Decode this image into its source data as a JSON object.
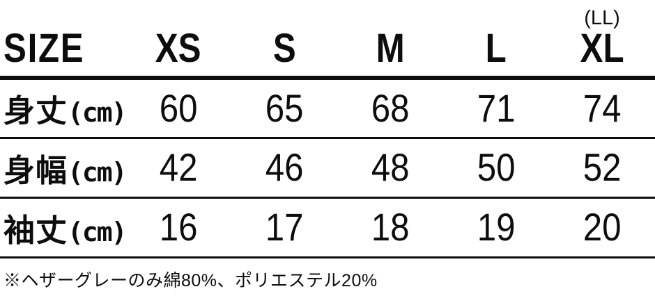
{
  "table": {
    "header": {
      "size_label": "SIZE",
      "columns": [
        {
          "label": "XS",
          "sub": ""
        },
        {
          "label": "S",
          "sub": ""
        },
        {
          "label": "M",
          "sub": ""
        },
        {
          "label": "L",
          "sub": ""
        },
        {
          "label": "XL",
          "sub": "(LL)"
        }
      ]
    },
    "rows": [
      {
        "label": "身丈",
        "unit": "(cm)",
        "values": [
          "60",
          "65",
          "68",
          "71",
          "74"
        ]
      },
      {
        "label": "身幅",
        "unit": "(cm)",
        "values": [
          "42",
          "46",
          "48",
          "50",
          "52"
        ]
      },
      {
        "label": "袖丈",
        "unit": "(cm)",
        "values": [
          "16",
          "17",
          "18",
          "19",
          "20"
        ]
      }
    ]
  },
  "footnote": "※ヘザーグレーのみ綿80%、ポリエステル20%",
  "colors": {
    "text": "#0d0d0d",
    "background": "#ffffff",
    "rule": "#0d0d0d"
  }
}
